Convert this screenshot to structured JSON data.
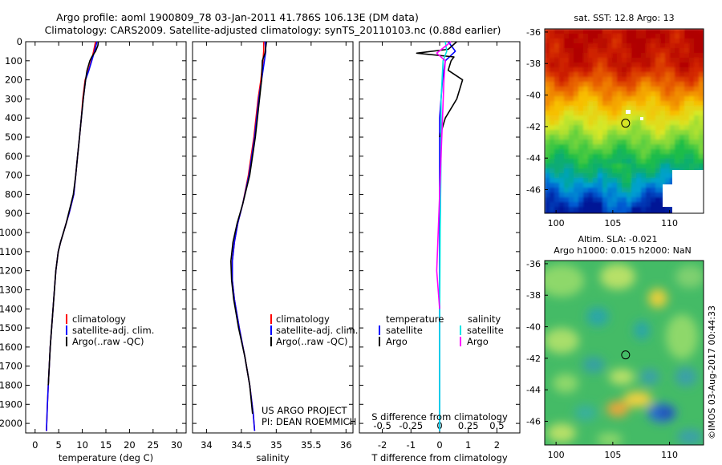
{
  "header": {
    "title_line1": "Argo profile: aoml 1900809_78 03-Jan-2011 41.786S 106.13E (DM data)",
    "title_line2": "Climatology: CARS2009. Satellite-adjusted climatology: synTS_20110103.nc (0.88d earlier)"
  },
  "footer": {
    "stamp": "©IMOS 03-Aug-2017 00:44:33"
  },
  "colors": {
    "climatology": "#ff0000",
    "satellite": "#0000ff",
    "argo": "#000000",
    "sal_satellite": "#00e5e5",
    "sal_argo": "#ff00ff"
  },
  "chart_data": [
    {
      "type": "line",
      "id": "temperature",
      "xlabel": "temperature (deg C)",
      "ylabel": "",
      "xlim": [
        -2,
        32
      ],
      "ylim": [
        2050,
        0
      ],
      "xticks": [
        0,
        5,
        10,
        15,
        20,
        25,
        30
      ],
      "yticks": [
        0,
        100,
        200,
        300,
        400,
        500,
        600,
        700,
        800,
        900,
        1000,
        1100,
        1200,
        1300,
        1400,
        1500,
        1600,
        1700,
        1800,
        1900,
        2000
      ],
      "legend": {
        "position": "bottom-center",
        "entries": [
          "climatology",
          "satellite-adj. clim.",
          "Argo(..raw -QC)"
        ]
      },
      "series": [
        {
          "name": "climatology",
          "color": "#ff0000",
          "x": [
            12.8,
            12.4,
            11.9,
            11.3,
            10.6,
            10.1,
            9.8,
            9.4,
            9.0,
            8.6,
            8.2,
            7.7,
            7.2,
            6.6,
            6.0,
            5.4,
            4.9,
            4.4,
            3.8,
            3.2,
            2.8,
            2.6,
            2.4
          ],
          "y": [
            0,
            50,
            100,
            150,
            200,
            300,
            400,
            500,
            600,
            700,
            800,
            850,
            900,
            950,
            1000,
            1050,
            1100,
            1200,
            1400,
            1600,
            1800,
            1900,
            2040
          ]
        },
        {
          "name": "satellite-adj. clim.",
          "color": "#0000ff",
          "x": [
            13.1,
            12.6,
            12.0,
            11.4,
            10.7,
            10.2,
            9.8,
            9.4,
            9.0,
            8.6,
            8.2,
            7.7,
            7.2,
            6.6,
            6.0,
            5.4,
            4.9,
            4.4,
            3.8,
            3.2,
            2.8,
            2.6,
            2.4
          ],
          "y": [
            0,
            50,
            100,
            150,
            200,
            300,
            400,
            500,
            600,
            700,
            800,
            850,
            900,
            950,
            1000,
            1050,
            1100,
            1200,
            1400,
            1600,
            1800,
            1900,
            2040
          ]
        },
        {
          "name": "Argo(..raw -QC)",
          "color": "#000000",
          "x": [
            13.4,
            13.3,
            12.8,
            12.0,
            11.6,
            11.0,
            10.7,
            10.2,
            9.8,
            9.4,
            9.0,
            8.6,
            8.1,
            7.6,
            7.1,
            6.6,
            6.0,
            5.4,
            4.9,
            4.4,
            3.8,
            3.2,
            2.8
          ],
          "y": [
            0,
            20,
            50,
            80,
            100,
            150,
            200,
            300,
            400,
            500,
            600,
            700,
            800,
            850,
            900,
            950,
            1000,
            1050,
            1100,
            1200,
            1400,
            1600,
            1800
          ]
        }
      ]
    },
    {
      "type": "line",
      "id": "salinity",
      "xlabel": "salinity",
      "ylabel": "",
      "xlim": [
        33.8,
        36.1
      ],
      "ylim": [
        2050,
        0
      ],
      "xticks": [
        34,
        34.5,
        35,
        35.5,
        36
      ],
      "legend": {
        "position": "bottom-center",
        "entries": [
          "climatology",
          "satellite-adj. clim.",
          "Argo(..raw -QC)"
        ]
      },
      "annotation_lines": [
        "US ARGO PROJECT",
        "PI: DEAN ROEMMICH"
      ],
      "series": [
        {
          "name": "climatology",
          "color": "#ff0000",
          "x": [
            34.82,
            34.82,
            34.81,
            34.78,
            34.74,
            34.68,
            34.6,
            34.52,
            34.45,
            34.4,
            34.37,
            34.37,
            34.4,
            34.47,
            34.55,
            34.62,
            34.67,
            34.69
          ],
          "y": [
            0,
            50,
            100,
            200,
            300,
            500,
            700,
            850,
            950,
            1050,
            1150,
            1250,
            1350,
            1500,
            1650,
            1800,
            1950,
            2040
          ]
        },
        {
          "name": "satellite-adj. clim.",
          "color": "#0000ff",
          "x": [
            34.84,
            34.85,
            34.83,
            34.79,
            34.75,
            34.69,
            34.61,
            34.52,
            34.45,
            34.4,
            34.37,
            34.37,
            34.4,
            34.47,
            34.55,
            34.62,
            34.67,
            34.69
          ],
          "y": [
            0,
            50,
            100,
            200,
            300,
            500,
            700,
            850,
            950,
            1050,
            1150,
            1250,
            1350,
            1500,
            1650,
            1800,
            1950,
            2040
          ]
        },
        {
          "name": "Argo(..raw -QC)",
          "color": "#000000",
          "x": [
            34.86,
            34.84,
            34.8,
            34.79,
            34.76,
            34.7,
            34.62,
            34.52,
            34.44,
            34.38,
            34.35,
            34.36,
            34.39,
            34.46,
            34.55,
            34.62,
            34.66
          ],
          "y": [
            0,
            60,
            100,
            200,
            300,
            500,
            700,
            850,
            950,
            1050,
            1150,
            1250,
            1350,
            1500,
            1650,
            1800,
            1950
          ]
        }
      ]
    },
    {
      "type": "line",
      "id": "difference",
      "xlabel": "T difference from climatology",
      "top_xlabel": "S difference from climatology",
      "ylabel": "",
      "xlim": [
        -2.8,
        2.8
      ],
      "ylim": [
        2050,
        0
      ],
      "xticks": [
        -2,
        -1,
        0,
        1,
        2
      ],
      "top_xticks": [
        "-0.5",
        "-0.25",
        "0",
        "0.25",
        "0.5"
      ],
      "top_xtick_positions": [
        -2,
        -1,
        0,
        1,
        2
      ],
      "legend": {
        "position": "bottom-center",
        "temperature_heading": "temperature",
        "salinity_heading": "salinity",
        "entries": [
          "satellite",
          "Argo",
          "satellite",
          "Argo"
        ]
      },
      "series": [
        {
          "name": "satellite",
          "group": "temperature",
          "color": "#0000ff",
          "x": [
            0.3,
            0.55,
            0.2,
            0.1,
            0.0,
            0.0,
            0.0,
            0.0,
            0.0,
            0.0
          ],
          "y": [
            0,
            50,
            100,
            200,
            400,
            600,
            1000,
            1400,
            1800,
            2040
          ]
        },
        {
          "name": "Argo",
          "group": "temperature",
          "color": "#000000",
          "x": [
            0.6,
            0.3,
            -0.8,
            0.5,
            0.4,
            0.3,
            0.8,
            0.6,
            0.2,
            0.0
          ],
          "y": [
            0,
            40,
            60,
            80,
            100,
            150,
            200,
            300,
            400,
            500
          ]
        },
        {
          "name": "satellite",
          "group": "salinity",
          "color": "#00e5e5",
          "x": [
            0.2,
            0.25,
            0.12,
            0.05,
            0.05,
            0.02,
            0.0,
            0.0
          ],
          "y": [
            0,
            50,
            100,
            300,
            600,
            1000,
            1500,
            2040
          ]
        },
        {
          "name": "Argo",
          "group": "salinity",
          "color": "#ff00ff",
          "x": [
            0.4,
            -0.1,
            0.2,
            0.15,
            0.1,
            0.0,
            -0.1,
            0.0
          ],
          "y": [
            0,
            60,
            100,
            200,
            400,
            800,
            1200,
            1400
          ]
        }
      ]
    },
    {
      "type": "heatmap",
      "id": "sst-map",
      "title": "sat. SST: 12.8 Argo: 13",
      "xlim": [
        99,
        113
      ],
      "ylim": [
        -47.5,
        -35.8
      ],
      "xticks": [
        100,
        105,
        110
      ],
      "yticks": [
        -36,
        -38,
        -40,
        -42,
        -44,
        -46
      ],
      "marker": {
        "lon": 106.13,
        "lat": -41.786
      }
    },
    {
      "type": "heatmap",
      "id": "sla-map",
      "title_line1": "Altim. SLA: -0.021",
      "title_line2": "Argo h1000: 0.015 h2000: NaN",
      "xlim": [
        99,
        113
      ],
      "ylim": [
        -47.5,
        -35.8
      ],
      "xticks": [
        100,
        105,
        110
      ],
      "yticks": [
        -36,
        -38,
        -40,
        -42,
        -44,
        -46
      ],
      "marker": {
        "lon": 106.13,
        "lat": -41.786
      }
    }
  ]
}
